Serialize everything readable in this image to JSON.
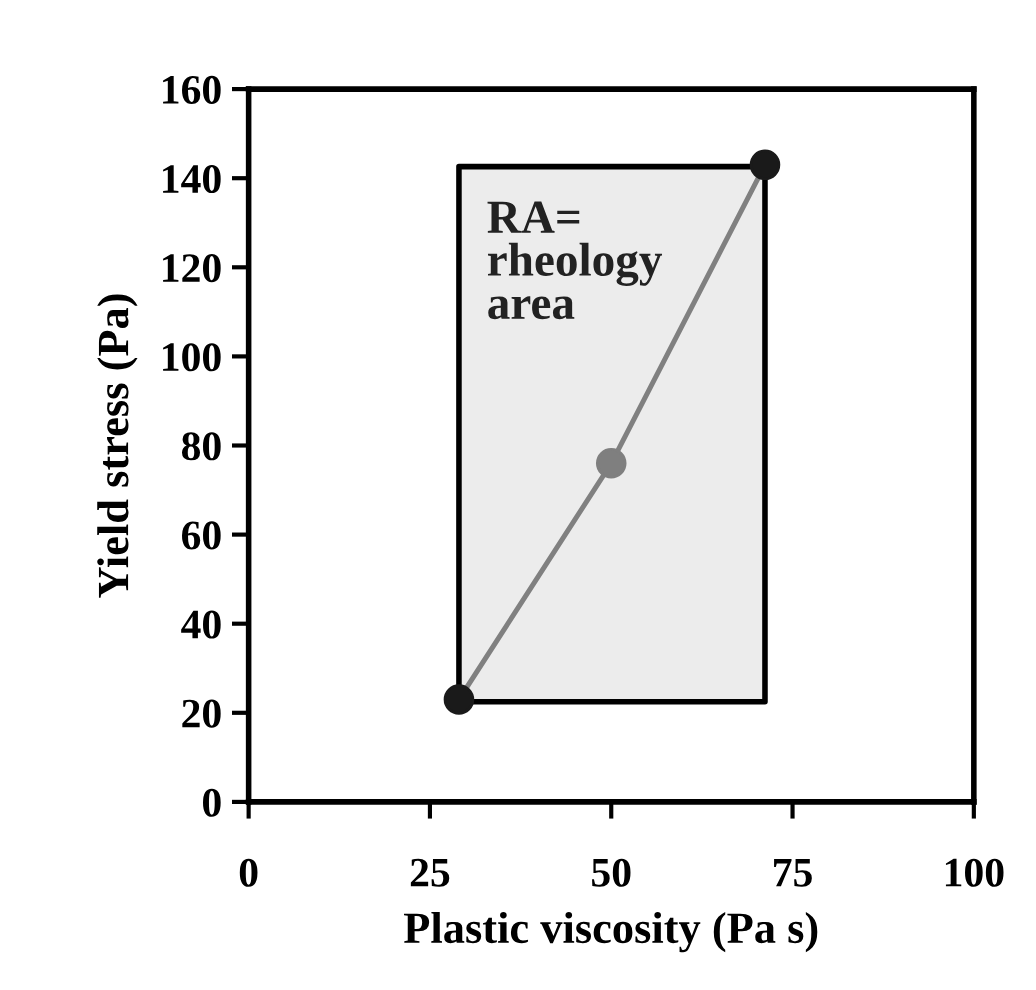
{
  "chart_data": {
    "type": "line",
    "xlabel": "Plastic viscosity (Pa s)",
    "ylabel": "Yield stress (Pa)",
    "xlim": [
      0,
      100
    ],
    "xticks": [
      0,
      25,
      50,
      75,
      100
    ],
    "ylim": [
      0,
      160
    ],
    "yticks": [
      0,
      20,
      40,
      60,
      80,
      100,
      120,
      140,
      160
    ],
    "grid": false,
    "series": [
      {
        "type": "area",
        "x": [
          29,
          29,
          71.2,
          71.2,
          29
        ],
        "values": [
          22.5,
          142.6,
          142.6,
          22.5,
          22.5
        ],
        "color": "#ececec"
      },
      {
        "x": [
          29,
          50,
          71.2
        ],
        "values": [
          23,
          76,
          143
        ],
        "color": "#808080",
        "colors": [
          "#1a1a1a",
          "#7f7f7f",
          "#1a1a1a"
        ],
        "marker": "circle"
      }
    ],
    "annotations": [
      "RA=\nrheology\narea"
    ]
  }
}
